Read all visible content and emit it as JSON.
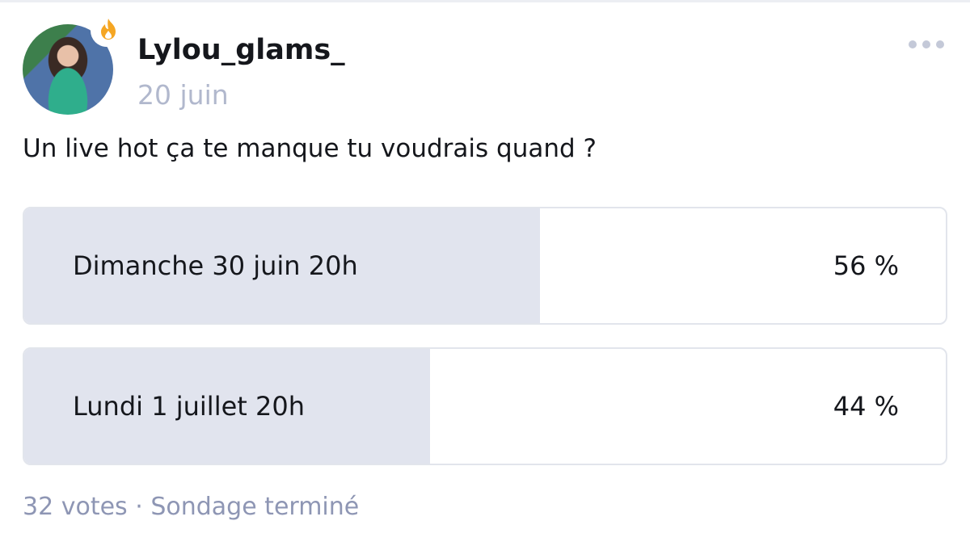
{
  "post": {
    "author": "Lylou_glams_",
    "date": "20 juin",
    "badge_icon": "flame-icon",
    "menu_icon": "more-horizontal-icon",
    "question": "Un live hot ça te manque tu voudrais quand ?"
  },
  "poll": {
    "options": [
      {
        "label": "Dimanche 30 juin 20h",
        "percent_label": "56 %",
        "percent": 56
      },
      {
        "label": "Lundi 1 juillet 20h",
        "percent_label": "44 %",
        "percent": 44
      }
    ],
    "votes": "32 votes",
    "separator": "·",
    "status": "Sondage terminé"
  },
  "colors": {
    "bar_fill": "#e1e4ee",
    "flame": "#f5a623",
    "muted_text": "#8e96b4"
  }
}
